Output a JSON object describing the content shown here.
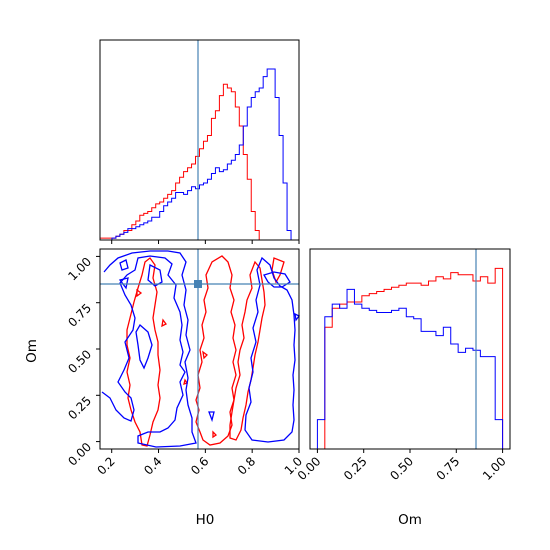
{
  "chart_data": {
    "type": "corner",
    "parameters": [
      "H0",
      "Om"
    ],
    "truth": {
      "H0": 0.59,
      "Om": 0.85
    },
    "colors": {
      "sample_a": "#ff0000",
      "sample_b": "#0000ff",
      "truth": "#4682b4"
    },
    "axes": {
      "H0": {
        "label": "H0",
        "lim": [
          0.15,
          1.0
        ],
        "ticks": [
          "0.2",
          "0.4",
          "0.6",
          "0.8",
          "1.0"
        ]
      },
      "Om": {
        "label": "Om",
        "lim": [
          -0.04,
          1.04
        ],
        "ticks": [
          "0.00",
          "0.25",
          "0.50",
          "0.75",
          "1.00"
        ]
      }
    },
    "hist_H0": {
      "bins": [
        0.15,
        0.167,
        0.184,
        0.201,
        0.218,
        0.235,
        0.252,
        0.269,
        0.286,
        0.303,
        0.32,
        0.337,
        0.354,
        0.371,
        0.388,
        0.405,
        0.422,
        0.439,
        0.456,
        0.473,
        0.49,
        0.507,
        0.524,
        0.541,
        0.558,
        0.575,
        0.592,
        0.609,
        0.626,
        0.643,
        0.66,
        0.677,
        0.694,
        0.711,
        0.728,
        0.745,
        0.762,
        0.779,
        0.796,
        0.813,
        0.83,
        0.847,
        0.864,
        0.881,
        0.898,
        0.915,
        0.932,
        0.949,
        0.966,
        0.983,
        1.0
      ],
      "red": [
        0.01,
        0.01,
        0.01,
        0.01,
        0.02,
        0.03,
        0.05,
        0.05,
        0.08,
        0.1,
        0.13,
        0.14,
        0.15,
        0.17,
        0.19,
        0.2,
        0.22,
        0.24,
        0.26,
        0.3,
        0.33,
        0.36,
        0.38,
        0.4,
        0.44,
        0.48,
        0.52,
        0.55,
        0.64,
        0.68,
        0.76,
        0.82,
        0.8,
        0.78,
        0.7,
        0.6,
        0.45,
        0.32,
        0.15,
        0.05,
        0.0,
        0.0,
        0.0,
        0.0,
        0.0,
        0.0,
        0.0,
        0.0,
        0.0,
        0.0
      ],
      "blue": [
        0.0,
        0.0,
        0.0,
        0.01,
        0.02,
        0.03,
        0.04,
        0.06,
        0.06,
        0.07,
        0.08,
        0.09,
        0.1,
        0.12,
        0.12,
        0.15,
        0.18,
        0.2,
        0.22,
        0.25,
        0.25,
        0.24,
        0.26,
        0.28,
        0.27,
        0.29,
        0.3,
        0.32,
        0.35,
        0.38,
        0.36,
        0.37,
        0.4,
        0.42,
        0.45,
        0.5,
        0.6,
        0.7,
        0.75,
        0.78,
        0.8,
        0.86,
        0.9,
        0.9,
        0.75,
        0.55,
        0.3,
        0.05,
        0.0,
        0.0
      ]
    },
    "hist_Om": {
      "bins": [
        0.0,
        0.04,
        0.08,
        0.12,
        0.16,
        0.2,
        0.24,
        0.28,
        0.32,
        0.36,
        0.4,
        0.44,
        0.48,
        0.52,
        0.56,
        0.6,
        0.64,
        0.68,
        0.72,
        0.76,
        0.8,
        0.84,
        0.88,
        0.92,
        0.96,
        1.0
      ],
      "red": [
        0.0,
        0.58,
        0.67,
        0.69,
        0.7,
        0.7,
        0.73,
        0.74,
        0.75,
        0.76,
        0.77,
        0.78,
        0.79,
        0.79,
        0.78,
        0.8,
        0.82,
        0.81,
        0.84,
        0.83,
        0.83,
        0.8,
        0.82,
        0.79,
        0.86
      ],
      "blue": [
        0.14,
        0.63,
        0.69,
        0.67,
        0.76,
        0.69,
        0.67,
        0.66,
        0.65,
        0.65,
        0.66,
        0.67,
        0.63,
        0.62,
        0.56,
        0.56,
        0.54,
        0.58,
        0.5,
        0.46,
        0.48,
        0.47,
        0.44,
        0.44,
        0.14
      ]
    }
  }
}
